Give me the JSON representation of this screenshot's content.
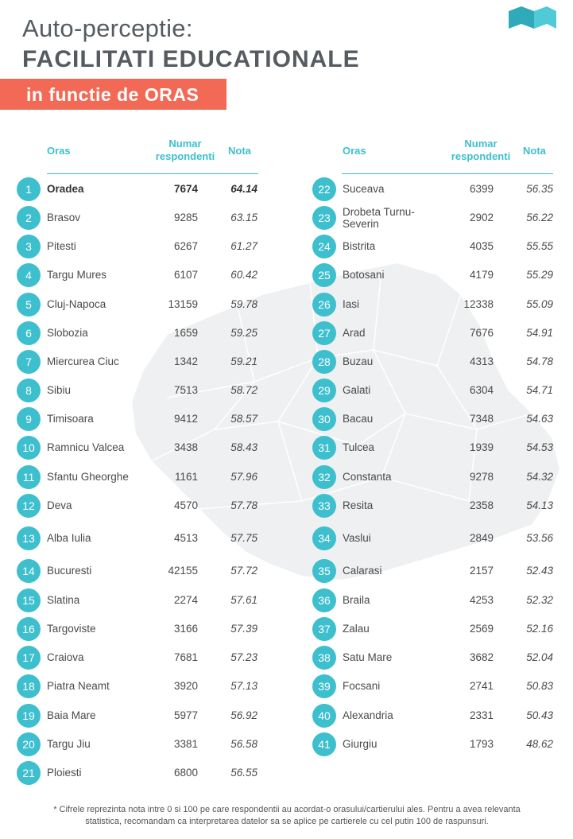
{
  "title_line1": "Auto-perceptie:",
  "title_line2": "FACILITATI EDUCATIONALE",
  "banner": "in functie de ORAS",
  "headers": {
    "city": "Oras",
    "respondents": "Numar respondenti",
    "score": "Nota"
  },
  "colors": {
    "accent": "#3dbfce",
    "banner": "#f26a55",
    "map": "#eef0f1"
  },
  "icons": [
    "map-romania-icon",
    "logo-icon"
  ],
  "rows": [
    {
      "rank": "1",
      "city": "Oradea",
      "respondents": "7674",
      "score": "64.14"
    },
    {
      "rank": "2",
      "city": "Brasov",
      "respondents": "9285",
      "score": "63.15"
    },
    {
      "rank": "3",
      "city": "Pitesti",
      "respondents": "6267",
      "score": "61.27"
    },
    {
      "rank": "4",
      "city": "Targu Mures",
      "respondents": "6107",
      "score": "60.42"
    },
    {
      "rank": "5",
      "city": "Cluj-Napoca",
      "respondents": "13159",
      "score": "59.78"
    },
    {
      "rank": "6",
      "city": "Slobozia",
      "respondents": "1659",
      "score": "59.25"
    },
    {
      "rank": "7",
      "city": "Miercurea Ciuc",
      "respondents": "1342",
      "score": "59.21"
    },
    {
      "rank": "8",
      "city": "Sibiu",
      "respondents": "7513",
      "score": "58.72"
    },
    {
      "rank": "9",
      "city": "Timisoara",
      "respondents": "9412",
      "score": "58.57"
    },
    {
      "rank": "10",
      "city": "Ramnicu Valcea",
      "respondents": "3438",
      "score": "58.43"
    },
    {
      "rank": "11",
      "city": "Sfantu Gheorghe",
      "respondents": "1161",
      "score": "57.96"
    },
    {
      "rank": "12",
      "city": "Deva",
      "respondents": "4570",
      "score": "57.78"
    },
    {
      "rank": "13",
      "city": "Alba Iulia",
      "respondents": "4513",
      "score": "57.75"
    },
    {
      "rank": "14",
      "city": "Bucuresti",
      "respondents": "42155",
      "score": "57.72"
    },
    {
      "rank": "15",
      "city": "Slatina",
      "respondents": "2274",
      "score": "57.61"
    },
    {
      "rank": "16",
      "city": "Targoviste",
      "respondents": "3166",
      "score": "57.39"
    },
    {
      "rank": "17",
      "city": "Craiova",
      "respondents": "7681",
      "score": "57.23"
    },
    {
      "rank": "18",
      "city": "Piatra Neamt",
      "respondents": "3920",
      "score": "57.13"
    },
    {
      "rank": "19",
      "city": "Baia Mare",
      "respondents": "5977",
      "score": "56.92"
    },
    {
      "rank": "20",
      "city": "Targu Jiu",
      "respondents": "3381",
      "score": "56.58"
    },
    {
      "rank": "21",
      "city": "Ploiesti",
      "respondents": "6800",
      "score": "56.55"
    },
    {
      "rank": "22",
      "city": "Suceava",
      "respondents": "6399",
      "score": "56.35"
    },
    {
      "rank": "23",
      "city": "Drobeta Turnu-Severin",
      "respondents": "2902",
      "score": "56.22"
    },
    {
      "rank": "24",
      "city": "Bistrita",
      "respondents": "4035",
      "score": "55.55"
    },
    {
      "rank": "25",
      "city": "Botosani",
      "respondents": "4179",
      "score": "55.29"
    },
    {
      "rank": "26",
      "city": "Iasi",
      "respondents": "12338",
      "score": "55.09"
    },
    {
      "rank": "27",
      "city": "Arad",
      "respondents": "7676",
      "score": "54.91"
    },
    {
      "rank": "28",
      "city": "Buzau",
      "respondents": "4313",
      "score": "54.78"
    },
    {
      "rank": "29",
      "city": "Galati",
      "respondents": "6304",
      "score": "54.71"
    },
    {
      "rank": "30",
      "city": "Bacau",
      "respondents": "7348",
      "score": "54.63"
    },
    {
      "rank": "31",
      "city": "Tulcea",
      "respondents": "1939",
      "score": "54.53"
    },
    {
      "rank": "32",
      "city": "Constanta",
      "respondents": "9278",
      "score": "54.32"
    },
    {
      "rank": "33",
      "city": "Resita",
      "respondents": "2358",
      "score": "54.13"
    },
    {
      "rank": "34",
      "city": "Vaslui",
      "respondents": "2849",
      "score": "53.56"
    },
    {
      "rank": "35",
      "city": "Calarasi",
      "respondents": "2157",
      "score": "52.43"
    },
    {
      "rank": "36",
      "city": "Braila",
      "respondents": "4253",
      "score": "52.32"
    },
    {
      "rank": "37",
      "city": "Zalau",
      "respondents": "2569",
      "score": "52.16"
    },
    {
      "rank": "38",
      "city": "Satu Mare",
      "respondents": "3682",
      "score": "52.04"
    },
    {
      "rank": "39",
      "city": "Focsani",
      "respondents": "2741",
      "score": "50.83"
    },
    {
      "rank": "40",
      "city": "Alexandria",
      "respondents": "2331",
      "score": "50.43"
    },
    {
      "rank": "41",
      "city": "Giurgiu",
      "respondents": "1793",
      "score": "48.62"
    }
  ],
  "footnote_line1": "* Cifrele reprezinta nota intre 0 si 100 pe care respondentii au acordat-o orasului/cartierului ales. Pentru a avea relevanta",
  "footnote_line2": "statistica, recomandam ca interpretarea datelor sa se aplice pe cartierele cu cel putin 100 de raspunsuri."
}
